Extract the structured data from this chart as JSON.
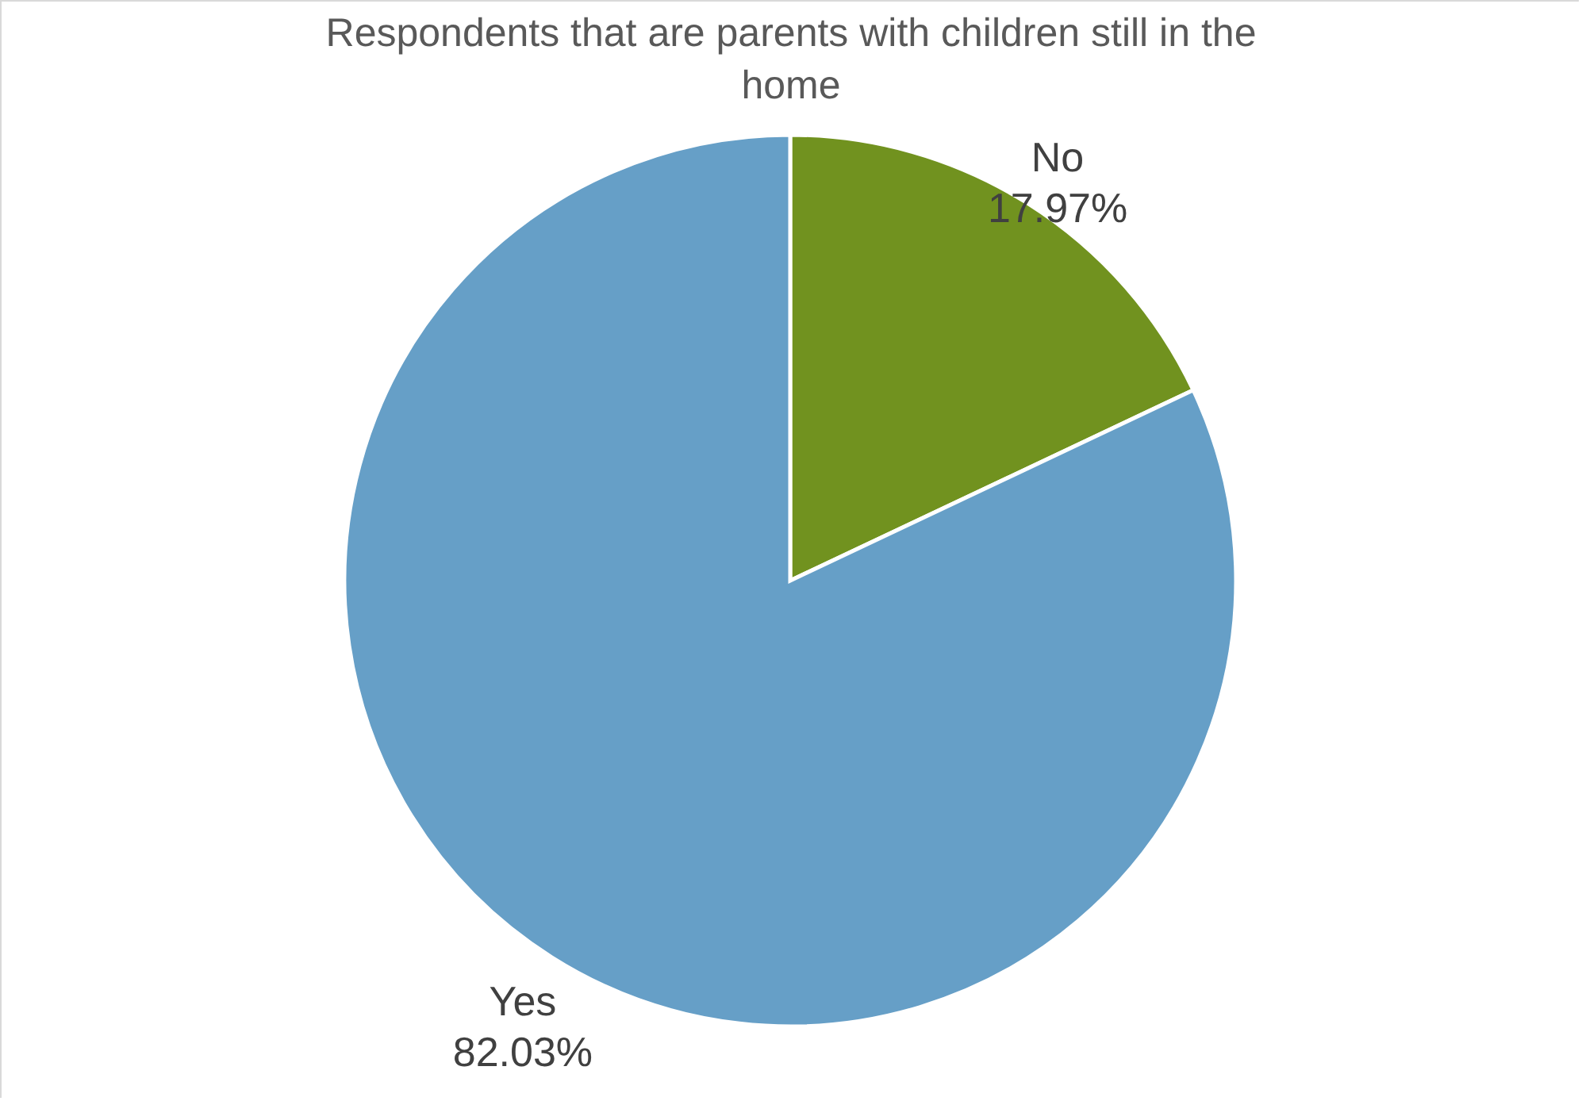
{
  "chart_data": {
    "type": "pie",
    "title": "Respondents that are parents with children still in the home",
    "categories": [
      "No",
      "Yes"
    ],
    "values": [
      17.97,
      82.03
    ],
    "colors": [
      "#71921f",
      "#669fc7"
    ],
    "value_labels": [
      "17.97%",
      "82.03%"
    ],
    "legend": false
  }
}
